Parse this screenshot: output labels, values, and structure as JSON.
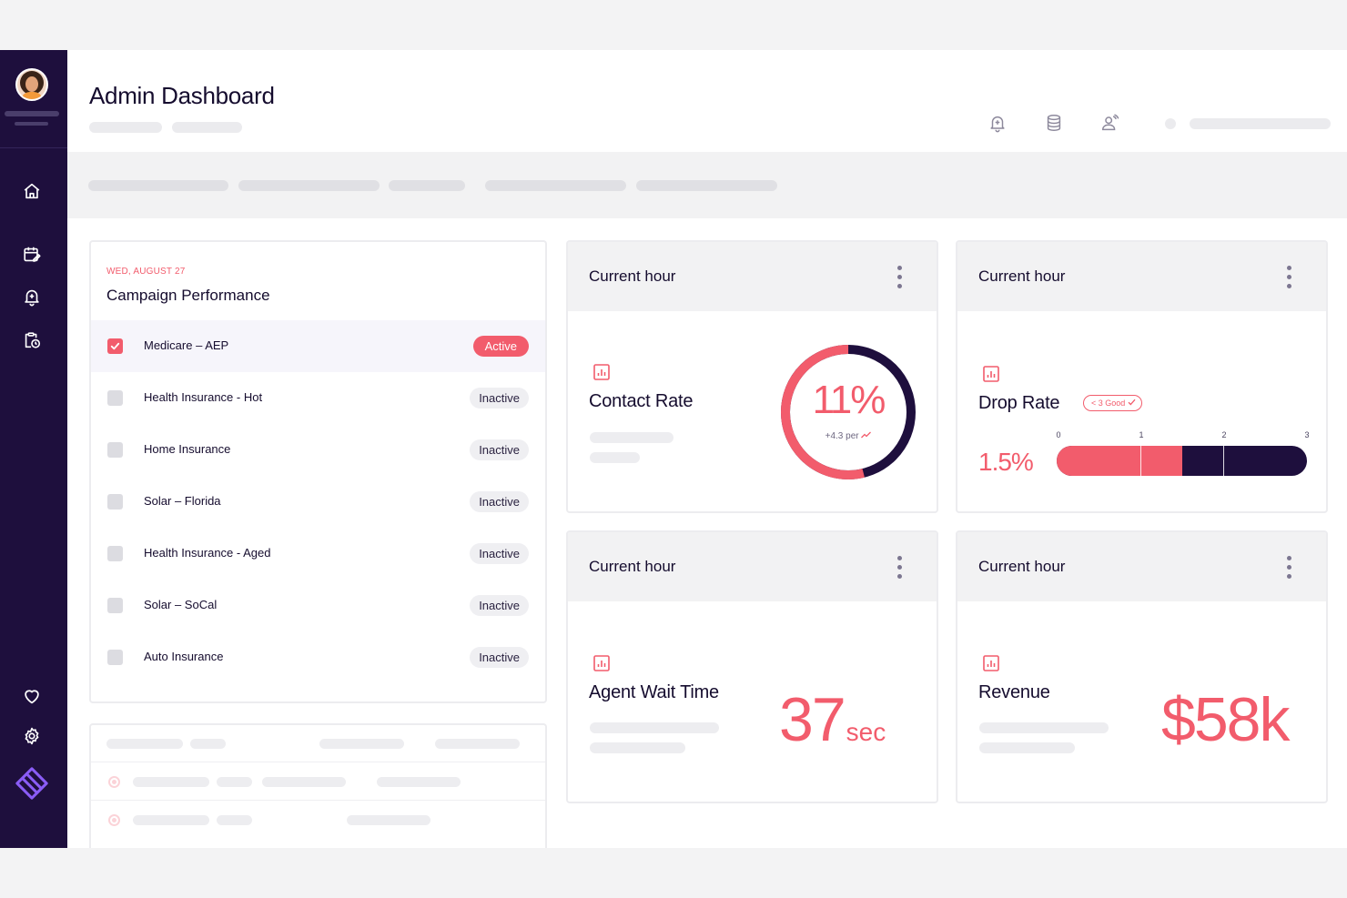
{
  "header": {
    "title": "Admin Dashboard"
  },
  "icons": {
    "nav": [
      "home-icon",
      "calendar-edit-icon",
      "bell-plus-icon",
      "clipboard-clock-icon",
      "heart-icon",
      "gear-icon"
    ],
    "header": [
      "bell-plus-icon",
      "database-icon",
      "user-signal-icon"
    ],
    "brand": "brand-logo-icon"
  },
  "campaigns": {
    "date": "WED, AUGUST 27",
    "title": "Campaign Performance",
    "rows": [
      {
        "name": "Medicare – AEP",
        "status": "Active",
        "checked": true
      },
      {
        "name": "Health Insurance - Hot",
        "status": "Inactive",
        "checked": false
      },
      {
        "name": "Home Insurance",
        "status": "Inactive",
        "checked": false
      },
      {
        "name": "Solar – Florida",
        "status": "Inactive",
        "checked": false
      },
      {
        "name": "Health Insurance - Aged",
        "status": "Inactive",
        "checked": false
      },
      {
        "name": "Solar – SoCal",
        "status": "Inactive",
        "checked": false
      },
      {
        "name": "Auto Insurance",
        "status": "Inactive",
        "checked": false
      }
    ]
  },
  "cards": {
    "contact_rate": {
      "header": "Current hour",
      "label": "Contact Rate",
      "value": "11%",
      "change": "+4.3 per",
      "ring_fraction": 0.11
    },
    "drop_rate": {
      "header": "Current hour",
      "label": "Drop Rate",
      "target": "< 3  Good",
      "value": "1.5%",
      "scale_ticks": [
        "0",
        "1",
        "2",
        "3"
      ],
      "bar_value": 1.5,
      "bar_max": 3
    },
    "agent_wait": {
      "header": "Current hour",
      "label": "Agent Wait Time",
      "value": "37",
      "unit": "sec"
    },
    "revenue": {
      "header": "Current hour",
      "label": "Revenue",
      "value": "$58k"
    }
  },
  "colors": {
    "accent": "#f25c6c",
    "sidebar": "#1e0f3d",
    "dark": "#1e0f3d",
    "brand_logo": "#8a5cf6"
  }
}
